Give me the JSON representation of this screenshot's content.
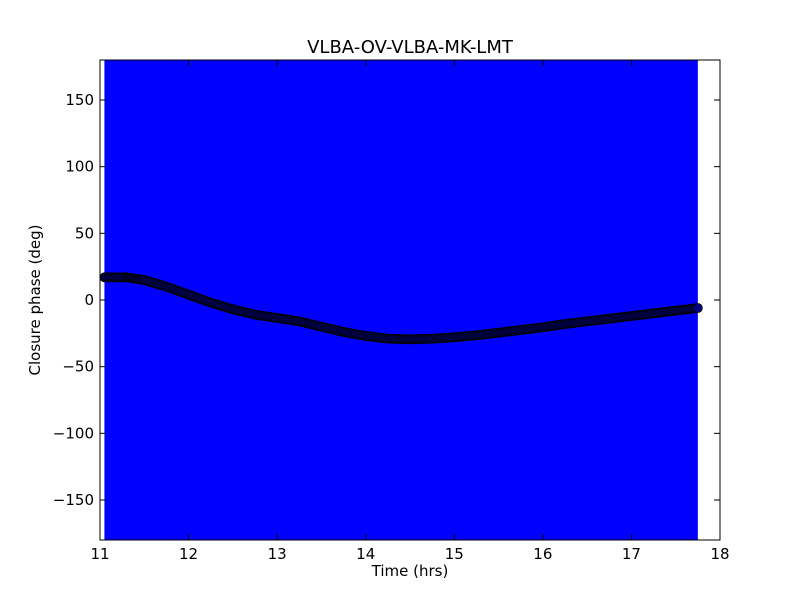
{
  "chart_data": {
    "type": "scatter",
    "title": "VLBA-OV-VLBA-MK-LMT",
    "xlabel": "Time (hrs)",
    "ylabel": "Closure phase (deg)",
    "xlim": [
      11,
      18
    ],
    "ylim": [
      -180,
      180
    ],
    "x_ticks": [
      11,
      12,
      13,
      14,
      15,
      16,
      17,
      18
    ],
    "x_tick_labels": [
      "11",
      "12",
      "13",
      "14",
      "15",
      "16",
      "17",
      "18"
    ],
    "y_ticks": [
      -150,
      -100,
      -50,
      0,
      50,
      100,
      150
    ],
    "y_tick_labels": [
      "−150",
      "−100",
      "−50",
      "0",
      "50",
      "100",
      "150"
    ],
    "grid": false,
    "error_band": {
      "x_range": [
        11.05,
        17.75
      ],
      "color": "#0000ff"
    },
    "series": [
      {
        "color": "#000080",
        "x": [
          11.05,
          11.3,
          11.5,
          11.75,
          12.0,
          12.25,
          12.5,
          12.75,
          13.0,
          13.25,
          13.5,
          13.75,
          14.0,
          14.25,
          14.5,
          14.75,
          15.0,
          15.25,
          15.5,
          15.75,
          16.0,
          16.25,
          16.5,
          16.75,
          17.0,
          17.25,
          17.5,
          17.75
        ],
        "y": [
          17.0,
          17.0,
          15.0,
          10.0,
          4.0,
          -2.0,
          -7.0,
          -11.0,
          -13.5,
          -16.0,
          -20.0,
          -24.0,
          -27.0,
          -29.0,
          -29.5,
          -29.0,
          -28.0,
          -26.5,
          -24.5,
          -22.5,
          -20.5,
          -18.0,
          -16.0,
          -14.0,
          -12.0,
          -10.0,
          -8.0,
          -6.0
        ]
      }
    ]
  }
}
